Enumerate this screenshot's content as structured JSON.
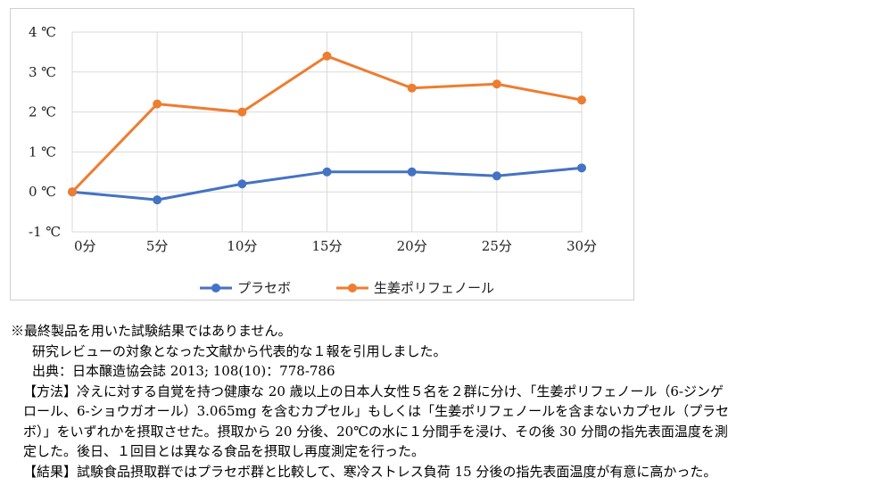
{
  "chart_data": {
    "type": "line",
    "categories": [
      "0分",
      "5分",
      "10分",
      "15分",
      "20分",
      "25分",
      "30分"
    ],
    "series": [
      {
        "name": "プラセボ",
        "color": "#4472C4",
        "values": [
          0,
          -0.2,
          0.2,
          0.5,
          0.5,
          0.4,
          0.6
        ]
      },
      {
        "name": "生姜ポリフェノール",
        "color": "#ED7D31",
        "values": [
          0,
          2.2,
          2.0,
          3.4,
          2.6,
          2.7,
          2.3
        ]
      }
    ],
    "y_ticks": [
      "-1 ℃",
      "0 ℃",
      "1 ℃",
      "2 ℃",
      "3 ℃",
      "4 ℃"
    ],
    "ylim": [
      -1,
      4
    ],
    "grid": true,
    "legend": "bottom"
  },
  "notes": {
    "line1": "※最終製品を用いた試験結果ではありません。",
    "line2": "研究レビューの対象となった文献から代表的な１報を引用しました。",
    "line3": "出典：日本醸造協会誌 2013; 108(10)：778-786",
    "method_1": "【方法】冷えに対する自覚を持つ健康な 20 歳以上の日本人女性５名を２群に分け、「生姜ポリフェノール（6-ジンゲ",
    "method_2": "ロール、6-ショウガオール）3.065mg を含むカプセル」もしくは「生姜ポリフェノールを含まないカプセル（プラセ",
    "method_3": "ボ）」をいずれかを摂取させた。摂取から 20 分後、20℃の水に１分間手を浸け、その後 30 分間の指先表面温度を測",
    "method_4": "定した。後日、１回目とは異なる食品を摂取し再度測定を行った。",
    "result": "【結果】試験食品摂取群ではプラセボ群と比較して、寒冷ストレス負荷 15 分後の指先表面温度が有意に高かった。"
  }
}
